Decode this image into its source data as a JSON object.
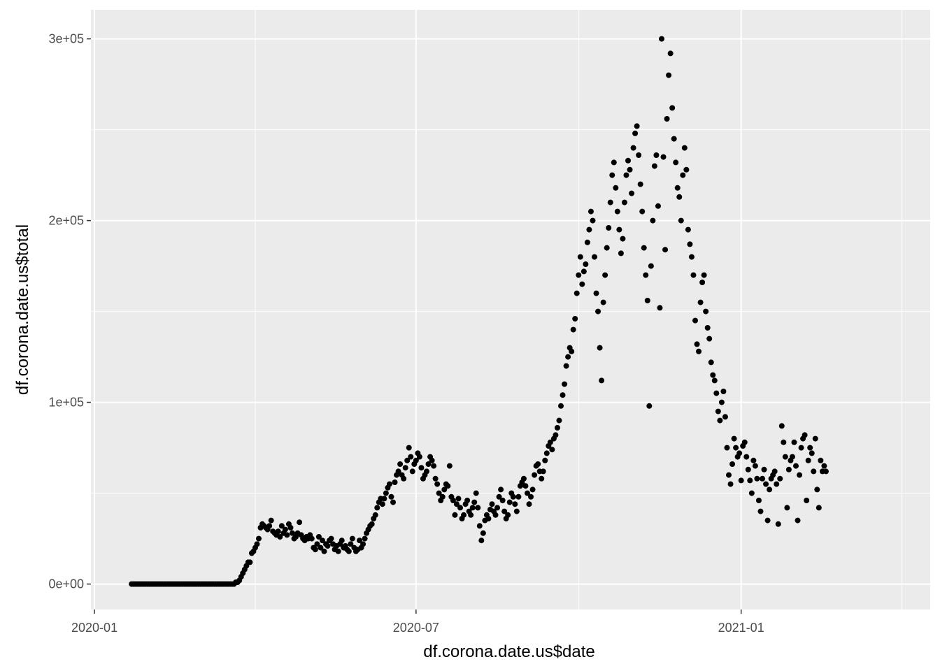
{
  "chart_data": {
    "type": "scatter",
    "title": "",
    "xlabel": "df.corona.date.us$date",
    "ylabel": "df.corona.date.us$total",
    "x_ticks": [
      "2020-01",
      "2020-07",
      "2021-01"
    ],
    "x_tick_dates": [
      "2020-01-01",
      "2020-07-01",
      "2021-01-01"
    ],
    "y_ticks": [
      0,
      100000,
      200000,
      300000
    ],
    "y_tick_labels": [
      "0e+00",
      "1e+05",
      "2e+05",
      "3e+05"
    ],
    "xlim": [
      "2019-12-30",
      "2021-04-18"
    ],
    "ylim": [
      -14000,
      316000
    ],
    "grid": true,
    "legend": "none",
    "colors": {
      "panel": "#ebebeb",
      "grid": "#ffffff",
      "point": "#000000",
      "tick_text": "#4d4d4d",
      "tick_mark": "#333333"
    },
    "series": [
      {
        "x_start": "2020-01-22",
        "x_step_days": 1,
        "y": [
          0,
          0,
          0,
          0,
          0,
          0,
          0,
          0,
          0,
          0,
          0,
          0,
          0,
          0,
          0,
          0,
          0,
          0,
          0,
          0,
          0,
          0,
          0,
          0,
          0,
          0,
          0,
          0,
          0,
          0,
          0,
          0,
          0,
          0,
          0,
          0,
          0,
          0,
          0,
          0,
          0,
          0,
          0,
          0,
          0,
          0,
          0,
          0,
          0,
          0,
          0,
          0,
          0,
          0,
          0,
          0,
          0,
          0,
          0,
          1000,
          1000,
          2000,
          4000,
          6000,
          8000,
          10000,
          12000,
          12000,
          17000,
          18000,
          20000,
          22000,
          25000,
          31000,
          33000,
          32000,
          31000,
          30000,
          32000,
          35000,
          29000,
          28000,
          27000,
          29000,
          26000,
          32000,
          28000,
          30000,
          27000,
          33000,
          31000,
          28000,
          25000,
          26000,
          28000,
          34000,
          27000,
          25000,
          24000,
          26000,
          25000,
          27000,
          25000,
          20000,
          19000,
          22000,
          26000,
          20000,
          24000,
          18000,
          22000,
          21000,
          24000,
          25000,
          22000,
          19000,
          21000,
          18000,
          22000,
          24000,
          20000,
          21000,
          19000,
          18000,
          22000,
          25000,
          20000,
          18000,
          19000,
          24000,
          20000,
          22000,
          25000,
          28000,
          30000,
          32000,
          33000,
          36000,
          38000,
          42000,
          45000,
          47000,
          44000,
          47000,
          50000,
          53000,
          55000,
          48000,
          45000,
          56000,
          60000,
          62000,
          66000,
          60000,
          58000,
          64000,
          68000,
          75000,
          70000,
          62000,
          66000,
          68000,
          72000,
          70000,
          64000,
          58000,
          60000,
          62000,
          66000,
          70000,
          68000,
          65000,
          58000,
          55000,
          50000,
          46000,
          48000,
          52000,
          55000,
          54000,
          65000,
          48000,
          46000,
          38000,
          44000,
          47000,
          42000,
          36000,
          38000,
          44000,
          46000,
          40000,
          38000,
          42000,
          45000,
          50000,
          42000,
          32000,
          24000,
          28000,
          35000,
          38000,
          36000,
          41000,
          44000,
          40000,
          38000,
          42000,
          48000,
          52000,
          46000,
          40000,
          36000,
          38000,
          45000,
          50000,
          48000,
          44000,
          40000,
          48000,
          54000,
          56000,
          58000,
          54000,
          50000,
          44000,
          48000,
          52000,
          60000,
          65000,
          66000,
          62000,
          58000,
          62000,
          68000,
          72000,
          76000,
          78000,
          74000,
          80000,
          82000,
          86000,
          90000,
          98000,
          104000,
          110000,
          120000,
          125000,
          130000,
          128000,
          140000,
          146000,
          160000,
          170000,
          180000,
          165000,
          172000,
          176000,
          188000,
          195000,
          205000,
          200000,
          180000,
          160000,
          150000,
          130000,
          112000,
          155000,
          170000,
          185000,
          196000,
          210000,
          225000,
          232000,
          218000,
          205000,
          195000,
          182000,
          190000,
          210000,
          225000,
          233000,
          228000,
          215000,
          240000,
          248000,
          252000,
          236000,
          220000,
          205000,
          185000,
          170000,
          156000,
          98000,
          175000,
          200000,
          230000,
          236000,
          208000,
          152000,
          300000,
          235000,
          184000,
          256000,
          280000,
          292000,
          262000,
          245000,
          232000,
          218000,
          213000,
          200000,
          225000,
          240000,
          228000,
          195000,
          187000,
          180000,
          170000,
          145000,
          132000,
          128000,
          155000,
          166000,
          170000,
          150000,
          141000,
          135000,
          122000,
          115000,
          112000,
          105000,
          95000,
          90000,
          100000,
          106000,
          92000,
          75000,
          60000,
          55000,
          66000,
          80000,
          75000,
          70000,
          72000,
          57000,
          76000,
          78000,
          70000,
          63000,
          57000,
          50000,
          68000,
          65000,
          58000,
          46000,
          40000,
          58000,
          63000,
          55000,
          35000,
          52000,
          58000,
          60000,
          62000,
          55000,
          33000,
          58000,
          87000,
          78000,
          70000,
          42000,
          63000,
          68000,
          70000,
          78000,
          65000,
          35000,
          60000,
          75000,
          80000,
          82000,
          46000,
          68000,
          75000,
          72000,
          62000,
          80000,
          52000,
          42000,
          68000,
          62000,
          65000,
          62000
        ]
      }
    ]
  }
}
